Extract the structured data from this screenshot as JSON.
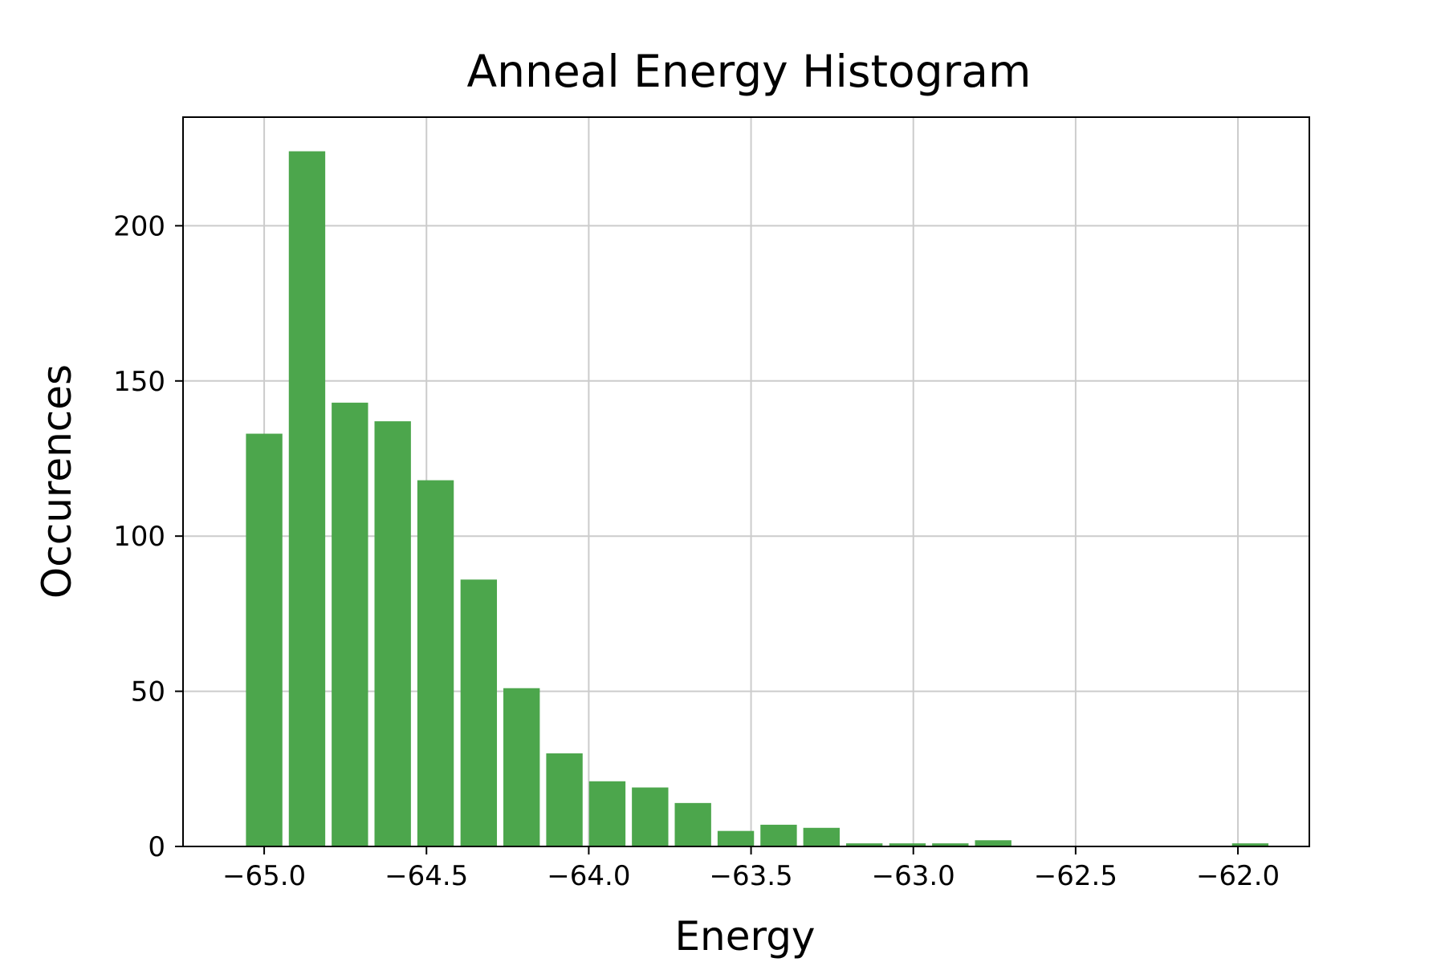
{
  "chart_data": {
    "type": "bar",
    "title": "Anneal Energy Histogram",
    "xlabel": "Energy",
    "ylabel": "Occurences",
    "x": [
      -65.0,
      -64.868,
      -64.736,
      -64.604,
      -64.472,
      -64.339,
      -64.207,
      -64.075,
      -63.943,
      -63.811,
      -63.679,
      -63.547,
      -63.415,
      -63.283,
      -63.151,
      -63.018,
      -62.886,
      -62.754,
      -62.622,
      -62.49,
      -62.358,
      -62.226,
      -62.094,
      -61.962
    ],
    "values": [
      133,
      224,
      143,
      137,
      118,
      86,
      51,
      30,
      21,
      19,
      14,
      5,
      7,
      6,
      1,
      1,
      1,
      2,
      0,
      0,
      0,
      0,
      0,
      1
    ],
    "xlim": [
      -65.25,
      -61.78
    ],
    "ylim": [
      0,
      235
    ],
    "xticks": [
      -65.0,
      -64.5,
      -64.0,
      -63.5,
      -63.0,
      -62.5,
      -62.0
    ],
    "xtick_labels": [
      "−65.0",
      "−64.5",
      "−64.0",
      "−63.5",
      "−63.0",
      "−62.5",
      "−62.0"
    ],
    "yticks": [
      0,
      50,
      100,
      150,
      200
    ],
    "ytick_labels": [
      "0",
      "50",
      "100",
      "150",
      "200"
    ],
    "bar_color": "#4ca64c",
    "grid": true,
    "legend": "none"
  }
}
